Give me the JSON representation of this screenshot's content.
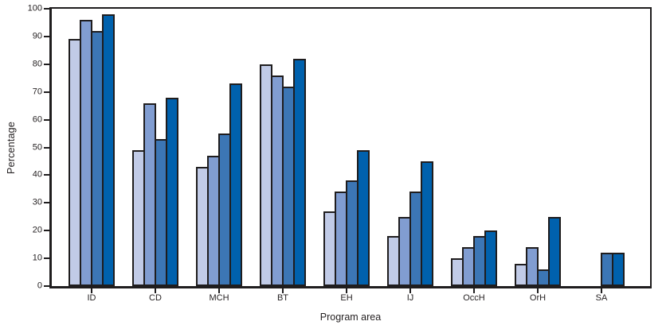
{
  "chart_data": {
    "type": "bar",
    "title": "",
    "xlabel": "Program area",
    "ylabel": "Percentage",
    "categories": [
      "ID",
      "CD",
      "MCH",
      "BT",
      "EH",
      "IJ",
      "OccH",
      "OrH",
      "SA"
    ],
    "series": [
      {
        "color": "#c1cbe7",
        "values": [
          89,
          49,
          43,
          80,
          27,
          18,
          10,
          8,
          null
        ]
      },
      {
        "color": "#819dd1",
        "values": [
          96,
          66,
          47,
          76,
          34,
          25,
          14,
          14,
          null
        ]
      },
      {
        "color": "#3c76b5",
        "values": [
          92,
          53,
          55,
          72,
          38,
          34,
          18,
          6,
          12
        ]
      },
      {
        "color": "#0061ad",
        "values": [
          98,
          68,
          73,
          82,
          49,
          45,
          20,
          25,
          12
        ]
      }
    ],
    "ylim": [
      0,
      100
    ],
    "y_ticks": [
      0,
      10,
      20,
      30,
      40,
      50,
      60,
      70,
      80,
      90,
      100
    ],
    "grid": false,
    "legend": "none",
    "bar_outline_color": "#1f1d1e",
    "axis_color": "#1f1d1e",
    "text_color": "#231f20",
    "background": "#ffffff"
  }
}
